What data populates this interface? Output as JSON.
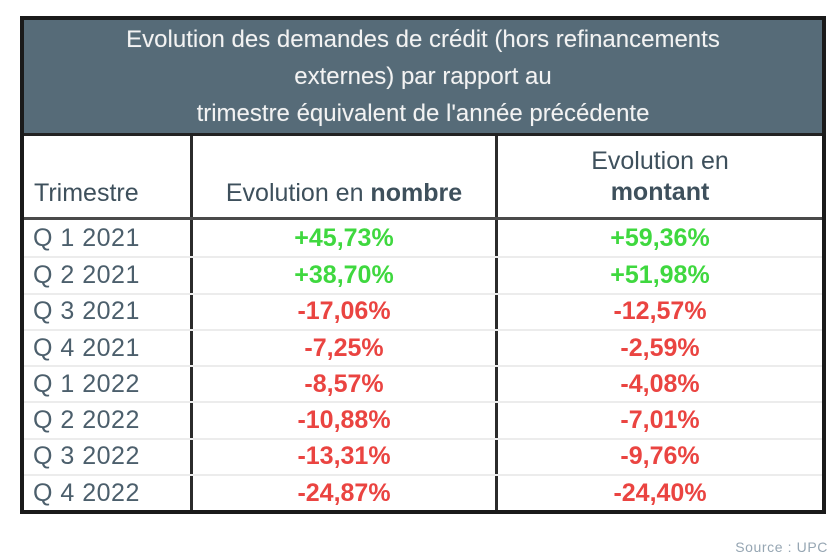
{
  "title_lines": [
    "Evolution des demandes de crédit (hors refinancements",
    "externes) par rapport au",
    "trimestre équivalent de l'année précédente"
  ],
  "columns": {
    "trimestre": "Trimestre",
    "nombre_prefix": "Evolution en ",
    "nombre_bold": "nombre",
    "montant_line1": "Evolution en",
    "montant_bold": "montant"
  },
  "rows": [
    {
      "quarter": "Q 1 2021",
      "nombre": "+45,73%",
      "montant": "+59,36%",
      "trend": "up"
    },
    {
      "quarter": "Q 2 2021",
      "nombre": "+38,70%",
      "montant": "+51,98%",
      "trend": "up"
    },
    {
      "quarter": "Q 3 2021",
      "nombre": "-17,06%",
      "montant": "-12,57%",
      "trend": "down"
    },
    {
      "quarter": "Q 4 2021",
      "nombre": "-7,25%",
      "montant": "-2,59%",
      "trend": "down"
    },
    {
      "quarter": "Q 1 2022",
      "nombre": "-8,57%",
      "montant": "-4,08%",
      "trend": "down"
    },
    {
      "quarter": "Q 2 2022",
      "nombre": "-10,88%",
      "montant": "-7,01%",
      "trend": "down"
    },
    {
      "quarter": "Q 3 2022",
      "nombre": "-13,31%",
      "montant": "-9,76%",
      "trend": "down"
    },
    {
      "quarter": "Q 4 2022",
      "nombre": "-24,87%",
      "montant": "-24,40%",
      "trend": "down"
    }
  ],
  "source": "Source : UPC",
  "colors": {
    "positive": "#3fd83f",
    "negative": "#ea4441",
    "header_band_bg": "#566b78",
    "quarter_text": "#4c5f6c",
    "source_text": "#96a6b3"
  },
  "chart_data": {
    "type": "table",
    "title": "Evolution des demandes de crédit (hors refinancements externes) par rapport au trimestre équivalent de l'année précédente",
    "categories": [
      "Q 1 2021",
      "Q 2 2021",
      "Q 3 2021",
      "Q 4 2021",
      "Q 1 2022",
      "Q 2 2022",
      "Q 3 2022",
      "Q 4 2022"
    ],
    "series": [
      {
        "name": "Evolution en nombre",
        "values": [
          45.73,
          38.7,
          -17.06,
          -7.25,
          -8.57,
          -10.88,
          -13.31,
          -24.87
        ]
      },
      {
        "name": "Evolution en montant",
        "values": [
          59.36,
          51.98,
          -12.57,
          -2.59,
          -4.08,
          -7.01,
          -9.76,
          -24.4
        ]
      }
    ],
    "value_format": "signed percentage, comma decimal separator",
    "notes": "positive values green, negative values red"
  }
}
